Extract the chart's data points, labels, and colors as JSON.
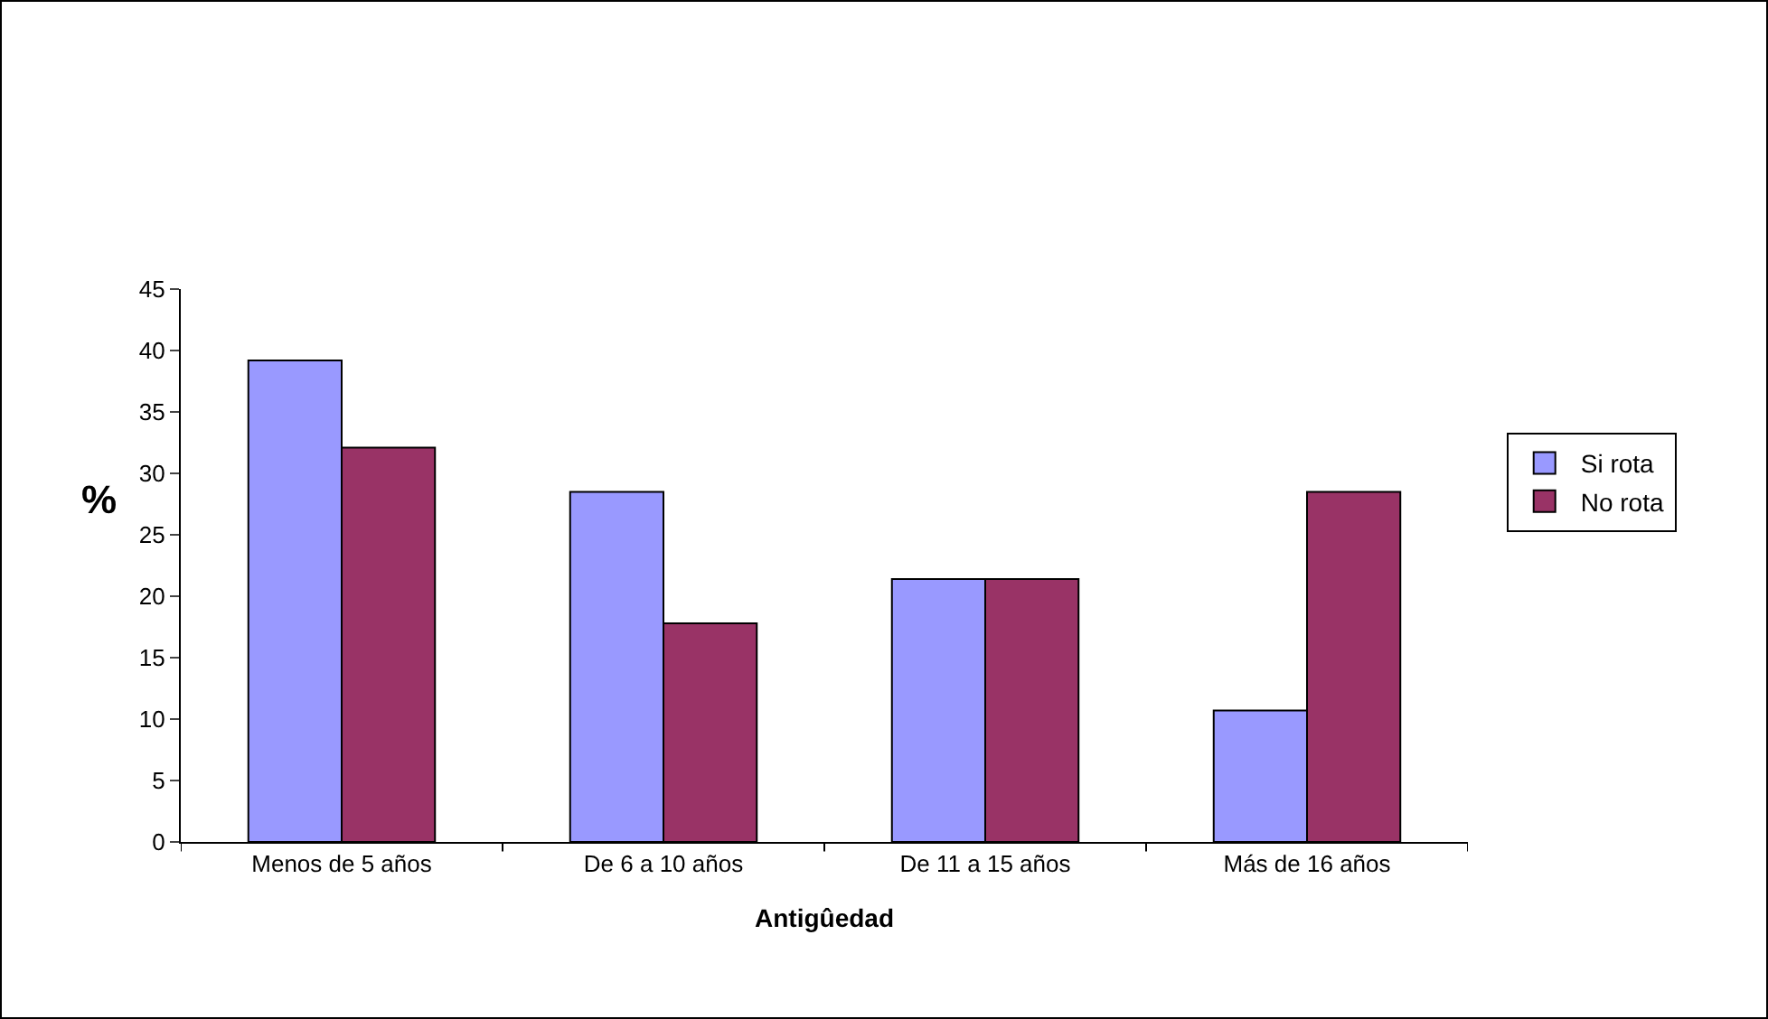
{
  "chart_data": {
    "type": "bar",
    "xlabel": "Antigûedad",
    "ylabel": "%",
    "categories": [
      "Menos de 5 años",
      "De 6 a 10 años",
      "De 11 a 15 años",
      "Más de 16 años"
    ],
    "series": [
      {
        "name": "Si rota",
        "color": "#9999ff",
        "values": [
          39.2,
          28.5,
          21.4,
          10.7
        ]
      },
      {
        "name": "No rota",
        "color": "#993366",
        "values": [
          32.1,
          17.8,
          21.4,
          28.5
        ]
      }
    ],
    "ylim": [
      0,
      45
    ],
    "yticks": [
      0,
      5,
      10,
      15,
      20,
      25,
      30,
      35,
      40,
      45
    ],
    "grid": false,
    "legend": "right"
  }
}
